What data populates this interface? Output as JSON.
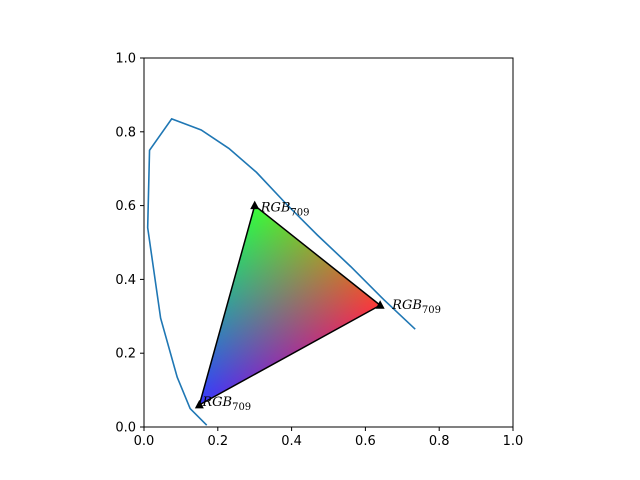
{
  "chart_data": {
    "type": "line",
    "title": "",
    "xlabel": "",
    "ylabel": "",
    "xlim": [
      0,
      1
    ],
    "ylim": [
      0,
      1
    ],
    "grid": false,
    "xticks": [
      "0.0",
      "0.2",
      "0.4",
      "0.6",
      "0.8",
      "1.0"
    ],
    "yticks": [
      "0.0",
      "0.2",
      "0.4",
      "0.6",
      "0.8",
      "1.0"
    ],
    "locus_color": "#1f77b4",
    "spectral_locus": [
      [
        0.17,
        0.005
      ],
      [
        0.125,
        0.05
      ],
      [
        0.09,
        0.135
      ],
      [
        0.045,
        0.295
      ],
      [
        0.01,
        0.54
      ],
      [
        0.015,
        0.75
      ],
      [
        0.075,
        0.835
      ],
      [
        0.155,
        0.805
      ],
      [
        0.23,
        0.755
      ],
      [
        0.305,
        0.69
      ],
      [
        0.385,
        0.605
      ],
      [
        0.47,
        0.52
      ],
      [
        0.56,
        0.435
      ],
      [
        0.65,
        0.345
      ],
      [
        0.735,
        0.265
      ]
    ],
    "gamut": {
      "primaries": [
        {
          "color": "red",
          "x": 0.64,
          "y": 0.33
        },
        {
          "color": "green",
          "x": 0.3,
          "y": 0.6
        },
        {
          "color": "blue",
          "x": 0.15,
          "y": 0.06
        }
      ],
      "vertex_labels": [
        {
          "base": "RGB",
          "sub": "709"
        },
        {
          "base": "RGB",
          "sub": "709"
        },
        {
          "base": "RGB",
          "sub": "709"
        }
      ]
    }
  }
}
